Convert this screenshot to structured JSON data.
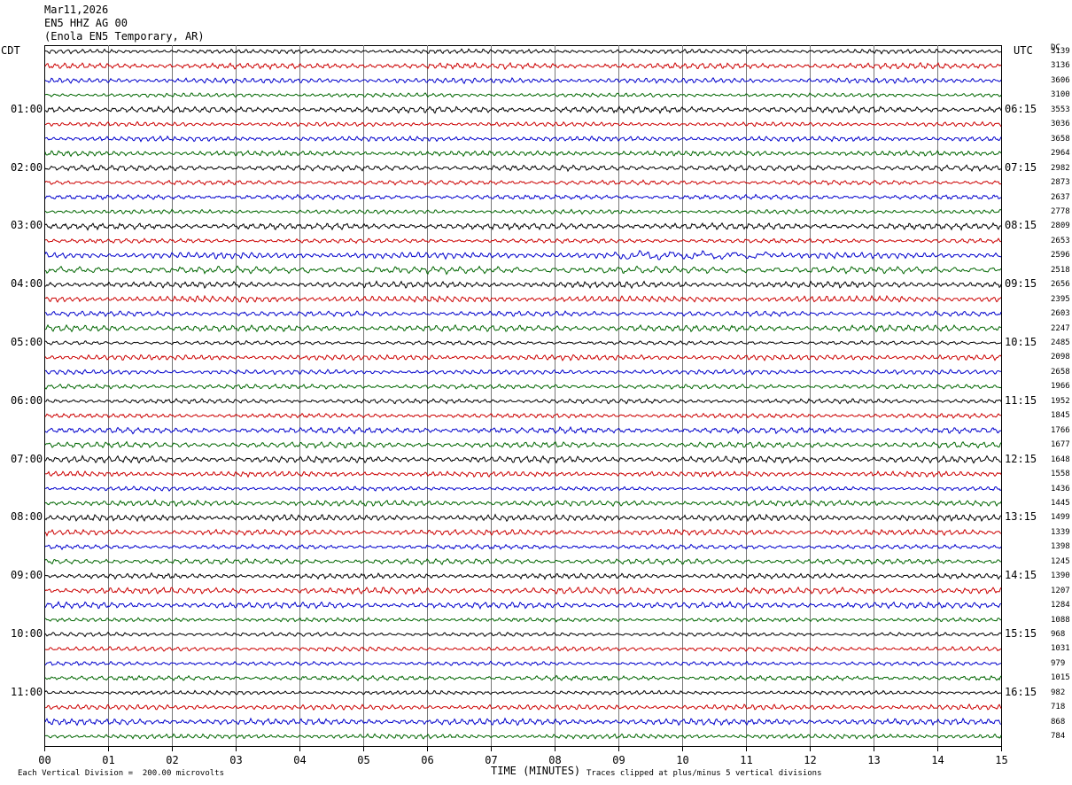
{
  "header": {
    "date": "Mar11,2026",
    "station": "EN5 HHZ AG 00",
    "location": "(Enola EN5 Temporary, AR)"
  },
  "left_timezone": "CDT",
  "right_timezone": "UTC",
  "dc_label": "DC",
  "chart_data": {
    "type": "line",
    "title": "EN5 HHZ AG 00",
    "xlabel": "TIME (MINUTES)",
    "x_ticks": [
      "00",
      "01",
      "02",
      "03",
      "04",
      "05",
      "06",
      "07",
      "08",
      "09",
      "10",
      "11",
      "12",
      "13",
      "14",
      "15"
    ],
    "xlim": [
      0,
      15
    ],
    "rows_per_hour": 4,
    "trace_colors": [
      "#000000",
      "#cc0000",
      "#0000cc",
      "#006600"
    ],
    "left_time_labels": [
      "01:00",
      "02:00",
      "03:00",
      "04:00",
      "05:00",
      "06:00",
      "07:00",
      "08:00",
      "09:00",
      "10:00",
      "11:00"
    ],
    "right_time_labels": [
      "06:15",
      "07:15",
      "08:15",
      "09:15",
      "10:15",
      "11:15",
      "12:15",
      "13:15",
      "14:15",
      "15:15",
      "16:15"
    ],
    "dc_offsets": [
      "3139",
      "3136",
      "3606",
      "3100",
      "3553",
      "3036",
      "3658",
      "2964",
      "2982",
      "2873",
      "2637",
      "2778",
      "2809",
      "2653",
      "2596",
      "2518",
      "2656",
      "2395",
      "2603",
      "2247",
      "2485",
      "2098",
      "2658",
      "1966",
      "1952",
      "1845",
      "1766",
      "1677",
      "1648",
      "1558",
      "1436",
      "1445",
      "1499",
      "1339",
      "1398",
      "1245",
      "1390",
      "1207",
      "1284",
      "1088",
      "968",
      "1031",
      "979",
      "1015",
      "982",
      "718",
      "868",
      "784"
    ],
    "scale_note": "Each Vertical Division =  200.00 microvolts",
    "clip_note": "Traces clipped at plus/minus 5 vertical divisions"
  }
}
